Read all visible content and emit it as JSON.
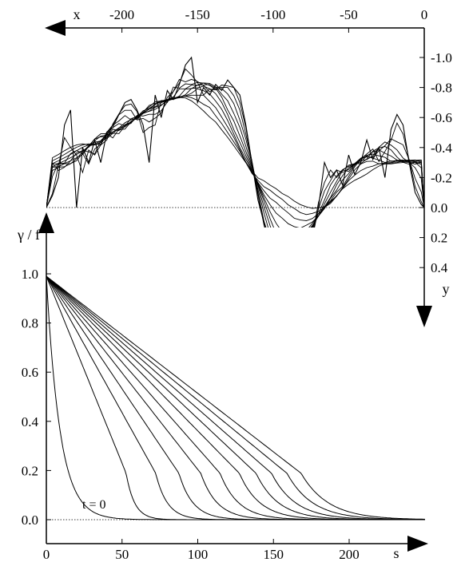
{
  "chart_data": [
    {
      "type": "line",
      "title": "",
      "xlabel": "x",
      "ylabel": "y",
      "x_axis": {
        "position": "top",
        "direction": "decreasing-leftward",
        "range": [
          -250,
          0
        ],
        "ticks": [
          -200,
          -150,
          -100,
          -50,
          0
        ],
        "tick_labels": [
          "-200",
          "-150",
          "-100",
          "-50",
          "0"
        ]
      },
      "y_axis": {
        "position": "right",
        "direction": "increasing-downward",
        "range": [
          -1.1,
          0.5
        ],
        "ticks": [
          -1.0,
          -0.8,
          -0.6,
          -0.4,
          -0.2,
          0.0,
          0.2,
          0.4
        ],
        "tick_labels": [
          "-1.0",
          "-0.8",
          "-0.6",
          "-0.4",
          "-0.2",
          "0.0",
          "0.2",
          "0.4"
        ]
      },
      "reference_line": {
        "y": 0.0,
        "style": "dotted"
      },
      "noisy_curve": {
        "x": [
          -250,
          -246,
          -242,
          -238,
          -234,
          -230,
          -226,
          -222,
          -218,
          -214,
          -210,
          -206,
          -202,
          -198,
          -194,
          -190,
          -186,
          -182,
          -178,
          -174,
          -170,
          -166,
          -162,
          -158,
          -154,
          -150,
          -146,
          -142,
          -138,
          -134,
          -130,
          -126,
          -122,
          -118,
          -114,
          -110,
          -106,
          -102,
          -98,
          -94,
          -90,
          -86,
          -82,
          -78,
          -74,
          -70,
          -66,
          -62,
          -58,
          -54,
          -50,
          -46,
          -42,
          -38,
          -34,
          -30,
          -26,
          -22,
          -18,
          -14,
          -10,
          -6,
          -2,
          0
        ],
        "y": [
          0.0,
          -0.08,
          -0.2,
          -0.55,
          -0.65,
          0.0,
          -0.4,
          -0.3,
          -0.45,
          -0.3,
          -0.5,
          -0.55,
          -0.62,
          -0.7,
          -0.72,
          -0.65,
          -0.55,
          -0.3,
          -0.75,
          -0.6,
          -0.78,
          -0.72,
          -0.82,
          -0.95,
          -1.0,
          -0.7,
          -0.8,
          -0.75,
          -0.82,
          -0.78,
          -0.85,
          -0.8,
          -0.75,
          -0.55,
          -0.3,
          -0.05,
          0.1,
          0.3,
          0.4,
          0.35,
          0.45,
          0.38,
          0.48,
          0.35,
          0.2,
          0.0,
          -0.3,
          -0.2,
          -0.25,
          -0.15,
          -0.35,
          -0.22,
          -0.3,
          -0.45,
          -0.32,
          -0.4,
          -0.2,
          -0.52,
          -0.62,
          -0.55,
          -0.3,
          -0.1,
          -0.02,
          0.0
        ]
      },
      "smoothed_curve_count": 10
    },
    {
      "type": "line",
      "title": "",
      "xlabel": "s",
      "ylabel": "γ / f",
      "x_axis": {
        "position": "bottom",
        "range": [
          0,
          250
        ],
        "ticks": [
          0,
          50,
          100,
          150,
          200
        ],
        "tick_labels": [
          "0",
          "50",
          "100",
          "150",
          "200"
        ]
      },
      "y_axis": {
        "position": "left",
        "range": [
          -0.05,
          1.15
        ],
        "ticks": [
          0.0,
          0.2,
          0.4,
          0.6,
          0.8,
          1.0
        ],
        "tick_labels": [
          "0.0",
          "0.2",
          "0.4",
          "0.6",
          "0.8",
          "1.0"
        ]
      },
      "reference_line": {
        "y": 0.0,
        "style": "dotted"
      },
      "series": [
        {
          "name": "t = 0",
          "start": [
            0,
            0.99
          ],
          "knee_s": 20
        },
        {
          "start": [
            0,
            0.99
          ],
          "knee_s": 62
        },
        {
          "start": [
            0,
            0.99
          ],
          "knee_s": 85
        },
        {
          "start": [
            0,
            0.99
          ],
          "knee_s": 103
        },
        {
          "start": [
            0,
            0.99
          ],
          "knee_s": 120
        },
        {
          "start": [
            0,
            0.99
          ],
          "knee_s": 135
        },
        {
          "start": [
            0,
            0.99
          ],
          "knee_s": 150
        },
        {
          "start": [
            0,
            0.99
          ],
          "knee_s": 163
        },
        {
          "start": [
            0,
            0.99
          ],
          "knee_s": 175
        },
        {
          "start": [
            0,
            0.99
          ],
          "knee_s": 187
        },
        {
          "start": [
            0,
            0.99
          ],
          "knee_s": 198
        }
      ],
      "annotations": [
        "t = 0"
      ]
    }
  ]
}
